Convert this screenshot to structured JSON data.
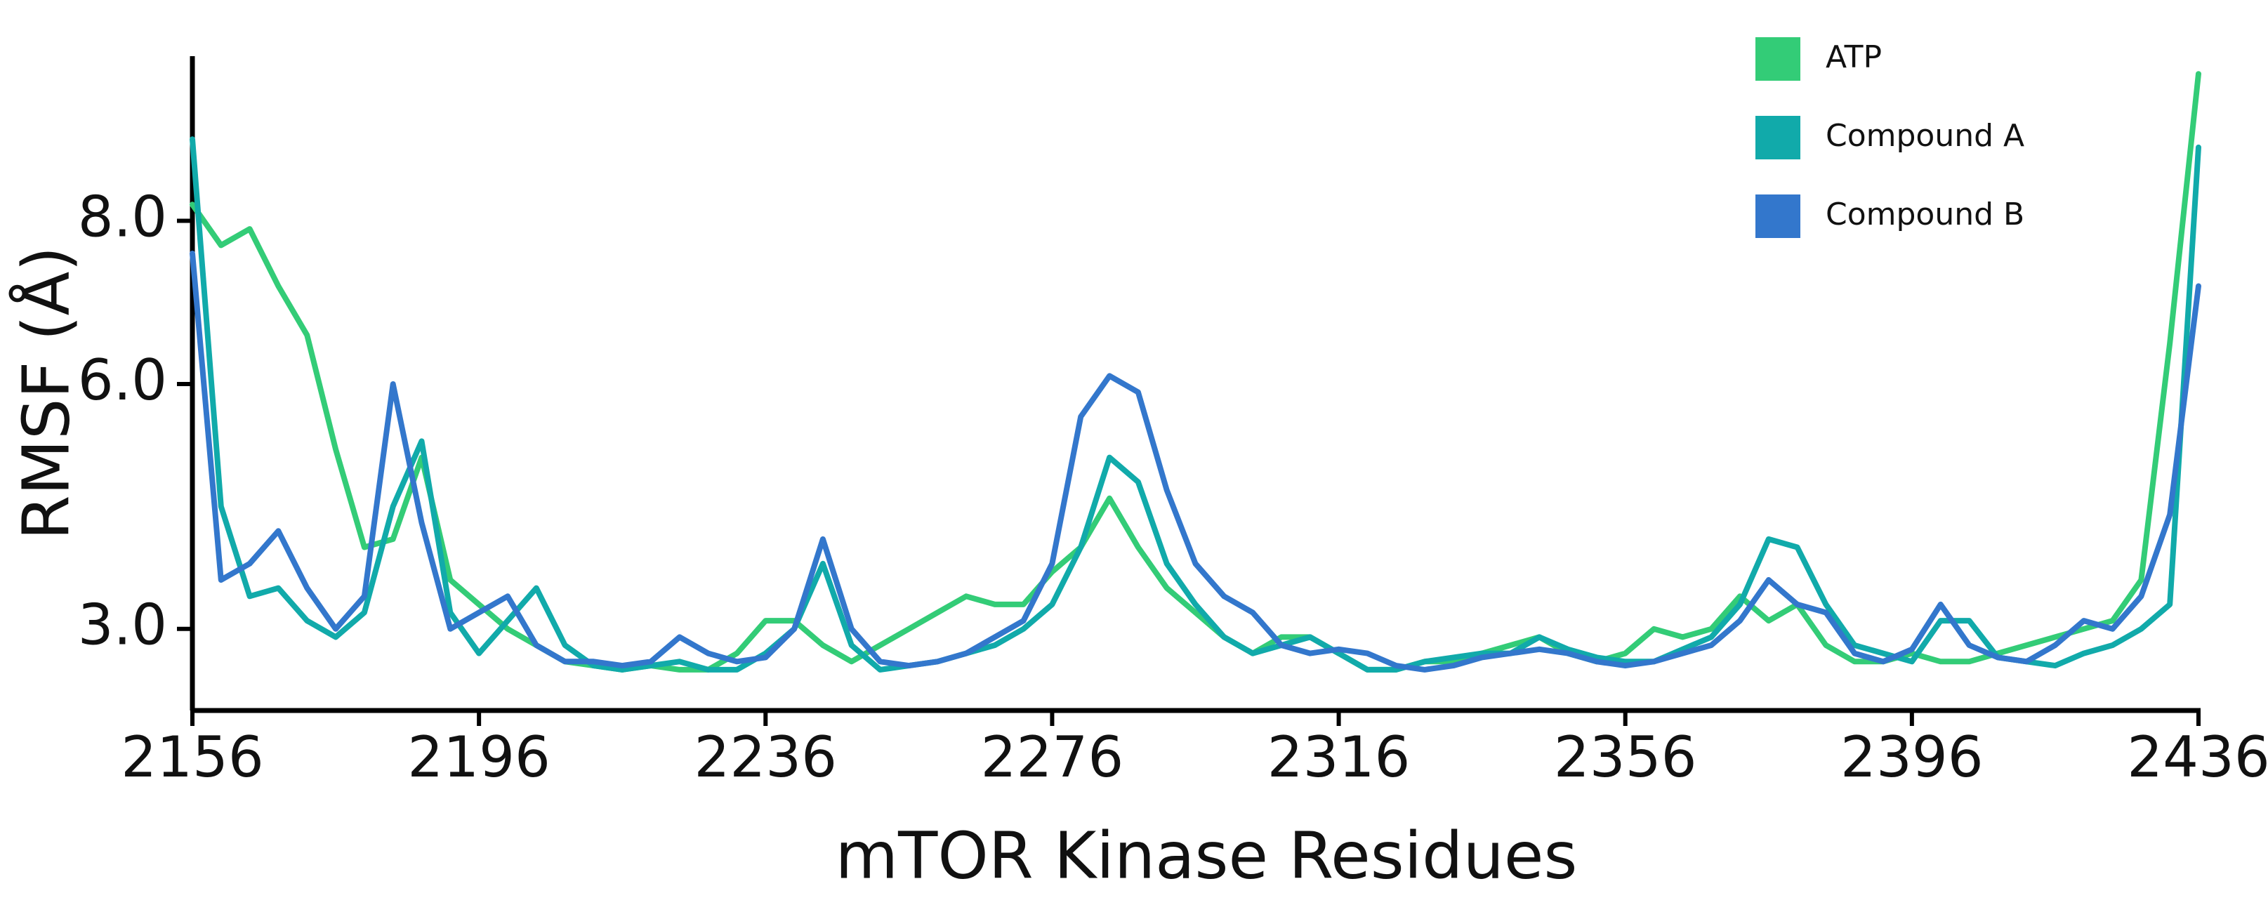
{
  "chart_data": {
    "type": "line",
    "x_label": "mTOR Kinase Residues",
    "y_label": "RMSF (Å)",
    "xlim": [
      2156,
      2436
    ],
    "ylim": [
      2,
      10
    ],
    "xticks": [
      2156,
      2196,
      2236,
      2276,
      2316,
      2356,
      2396,
      2436
    ],
    "yticks": [
      {
        "value": 3,
        "label": "3.0"
      },
      {
        "value": 6,
        "label": "6.0"
      },
      {
        "value": 8,
        "label": "8.0"
      }
    ],
    "legend": "upper right",
    "x": [
      2156,
      2160,
      2164,
      2168,
      2172,
      2176,
      2180,
      2184,
      2188,
      2192,
      2196,
      2200,
      2204,
      2208,
      2212,
      2216,
      2220,
      2224,
      2228,
      2232,
      2236,
      2240,
      2244,
      2248,
      2252,
      2256,
      2260,
      2264,
      2268,
      2272,
      2276,
      2280,
      2284,
      2288,
      2292,
      2296,
      2300,
      2304,
      2308,
      2312,
      2316,
      2320,
      2324,
      2328,
      2332,
      2336,
      2340,
      2344,
      2348,
      2352,
      2356,
      2360,
      2364,
      2368,
      2372,
      2376,
      2380,
      2384,
      2388,
      2392,
      2396,
      2400,
      2404,
      2408,
      2412,
      2416,
      2420,
      2424,
      2428,
      2432,
      2436
    ],
    "series": [
      {
        "name": "ATP",
        "color": "#33cc77",
        "values": [
          8.2,
          7.7,
          7.9,
          7.2,
          6.6,
          5.2,
          4.0,
          4.1,
          5.1,
          3.6,
          3.3,
          3.0,
          2.8,
          2.6,
          2.55,
          2.5,
          2.55,
          2.5,
          2.5,
          2.7,
          3.1,
          3.1,
          2.8,
          2.6,
          2.8,
          3.0,
          3.2,
          3.4,
          3.3,
          3.3,
          3.7,
          4.0,
          4.6,
          4.0,
          3.5,
          3.2,
          2.9,
          2.7,
          2.9,
          2.9,
          2.7,
          2.5,
          2.5,
          2.6,
          2.6,
          2.7,
          2.8,
          2.9,
          2.7,
          2.6,
          2.7,
          3.0,
          2.9,
          3.0,
          3.4,
          3.1,
          3.3,
          2.8,
          2.6,
          2.6,
          2.7,
          2.6,
          2.6,
          2.7,
          2.8,
          2.9,
          3.0,
          3.1,
          3.6,
          6.5,
          9.8
        ]
      },
      {
        "name": "Compound A",
        "color": "#11aaaa",
        "values": [
          9.0,
          4.5,
          3.4,
          3.5,
          3.1,
          2.9,
          3.2,
          4.5,
          5.3,
          3.2,
          2.7,
          3.1,
          3.5,
          2.8,
          2.55,
          2.5,
          2.55,
          2.6,
          2.5,
          2.5,
          2.7,
          3.0,
          3.8,
          2.8,
          2.5,
          2.55,
          2.6,
          2.7,
          2.8,
          3.0,
          3.3,
          4.0,
          5.1,
          4.8,
          3.8,
          3.3,
          2.9,
          2.7,
          2.8,
          2.9,
          2.7,
          2.5,
          2.5,
          2.6,
          2.65,
          2.7,
          2.7,
          2.9,
          2.75,
          2.65,
          2.6,
          2.6,
          2.75,
          2.9,
          3.3,
          4.1,
          4.0,
          3.3,
          2.8,
          2.7,
          2.6,
          3.1,
          3.1,
          2.65,
          2.6,
          2.55,
          2.7,
          2.8,
          3.0,
          3.3,
          8.9
        ]
      },
      {
        "name": "Compound B",
        "color": "#3377cc",
        "values": [
          7.6,
          3.6,
          3.8,
          4.2,
          3.5,
          3.0,
          3.4,
          6.0,
          4.3,
          3.0,
          3.2,
          3.4,
          2.8,
          2.6,
          2.6,
          2.55,
          2.6,
          2.9,
          2.7,
          2.6,
          2.65,
          3.0,
          4.1,
          3.0,
          2.6,
          2.55,
          2.6,
          2.7,
          2.9,
          3.1,
          3.8,
          5.6,
          6.1,
          5.9,
          4.7,
          3.8,
          3.4,
          3.2,
          2.8,
          2.7,
          2.75,
          2.7,
          2.55,
          2.5,
          2.55,
          2.65,
          2.7,
          2.75,
          2.7,
          2.6,
          2.55,
          2.6,
          2.7,
          2.8,
          3.1,
          3.6,
          3.3,
          3.2,
          2.7,
          2.6,
          2.75,
          3.3,
          2.8,
          2.65,
          2.6,
          2.8,
          3.1,
          3.0,
          3.4,
          4.4,
          7.2
        ]
      }
    ]
  }
}
